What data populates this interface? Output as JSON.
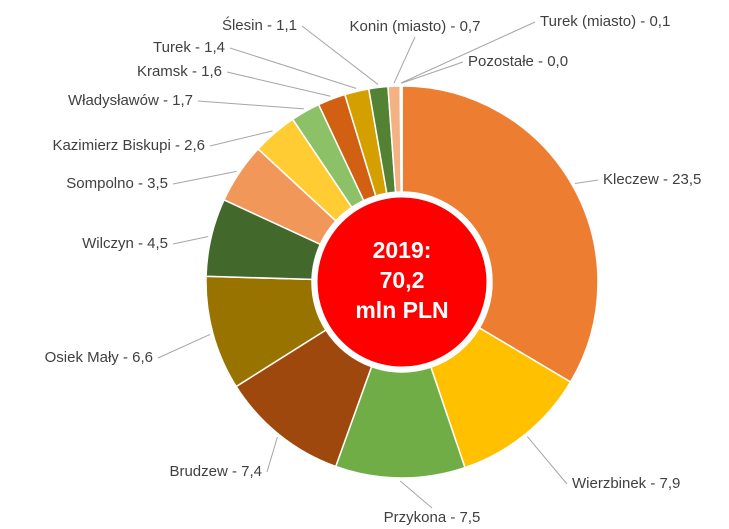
{
  "chart_data": {
    "type": "donut",
    "categories": [
      "Kleczew - 23,5",
      "Wierzbinek - 7,9",
      "Przykona - 7,5",
      "Brudzew - 7,4",
      "Osiek Mały - 6,6",
      "Wilczyn - 4,5",
      "Sompolno - 3,5",
      "Kazimierz Biskupi - 2,6",
      "Władysławów - 1,7",
      "Kramsk - 1,6",
      "Turek - 1,4",
      "Ślesin - 1,1",
      "Konin (miasto) - 0,7",
      "Turek (miasto) - 0,1",
      "Pozostałe - 0,0"
    ],
    "values": [
      23.5,
      7.9,
      7.5,
      7.4,
      6.6,
      4.5,
      3.5,
      2.6,
      1.7,
      1.6,
      1.4,
      1.1,
      0.7,
      0.1,
      0.0
    ],
    "colors": [
      "#ed7d31",
      "#ffc000",
      "#70ad47",
      "#9e480e",
      "#997300",
      "#43682b",
      "#f1975a",
      "#ffcd33",
      "#8cc168",
      "#d26012",
      "#d4a000",
      "#548235",
      "#f4b183",
      "#fbe5d6",
      "#cccccc"
    ],
    "center_label": [
      "2019:",
      "70,2",
      "mln PLN"
    ],
    "center_color": "#ff0000"
  }
}
